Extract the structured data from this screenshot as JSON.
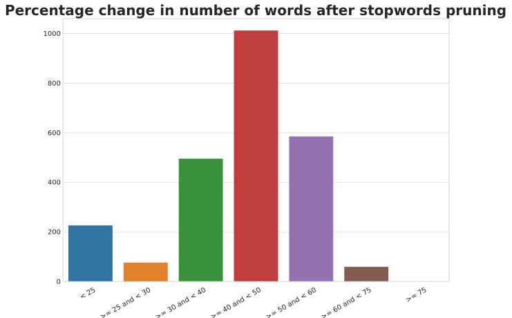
{
  "chart_data": {
    "type": "bar",
    "title": "Percentage change in number of words after stopwords pruning",
    "xlabel": "",
    "ylabel": "",
    "categories": [
      "< 25",
      ">= 25 and < 30",
      ">= 30 and < 40",
      ">= 40 and < 50",
      ">= 50 and < 60",
      ">= 60 and < 75",
      ">= 75"
    ],
    "values": [
      226,
      76,
      495,
      1012,
      585,
      59,
      0
    ],
    "ylim": [
      0,
      1060
    ],
    "yticks": [
      0,
      200,
      400,
      600,
      800,
      1000
    ],
    "ytick_labels": [
      "0",
      "200",
      "400",
      "600",
      "800",
      "1000"
    ],
    "colors": [
      "#3274a1",
      "#e1812c",
      "#3a923a",
      "#c03d3e",
      "#9372b2",
      "#845b53",
      "#d684bd"
    ],
    "grid": "horizontal",
    "legend": "none"
  }
}
